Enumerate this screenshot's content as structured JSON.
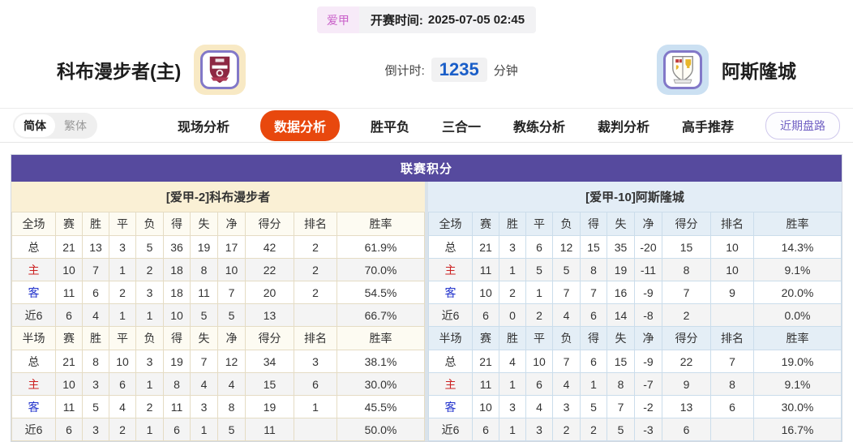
{
  "header": {
    "league": "爱甲",
    "kickoff_label": "开赛时间:",
    "kickoff_time": "2025-07-05 02:45",
    "home_team": "科布漫步者(主)",
    "away_team": "阿斯隆城",
    "countdown_label": "倒计时:",
    "countdown_value": "1235",
    "countdown_unit": "分钟"
  },
  "nav": {
    "lang": [
      "简体",
      "繁体"
    ],
    "tabs": [
      "现场分析",
      "数据分析",
      "胜平负",
      "三合一",
      "教练分析",
      "裁判分析",
      "高手推荐"
    ],
    "active_tab": "数据分析",
    "recent_button": "近期盘路"
  },
  "standings": {
    "title": "联赛积分",
    "home": {
      "band": "[爱甲-2]科布漫步者",
      "sections": [
        {
          "header": [
            "全场",
            "赛",
            "胜",
            "平",
            "负",
            "得",
            "失",
            "净",
            "得分",
            "排名",
            "胜率"
          ],
          "rows": [
            [
              "总",
              "21",
              "13",
              "3",
              "5",
              "36",
              "19",
              "17",
              "42",
              "2",
              "61.9%"
            ],
            [
              "主",
              "10",
              "7",
              "1",
              "2",
              "18",
              "8",
              "10",
              "22",
              "2",
              "70.0%"
            ],
            [
              "客",
              "11",
              "6",
              "2",
              "3",
              "18",
              "11",
              "7",
              "20",
              "2",
              "54.5%"
            ],
            [
              "近6",
              "6",
              "4",
              "1",
              "1",
              "10",
              "5",
              "5",
              "13",
              "",
              "66.7%"
            ]
          ]
        },
        {
          "header": [
            "半场",
            "赛",
            "胜",
            "平",
            "负",
            "得",
            "失",
            "净",
            "得分",
            "排名",
            "胜率"
          ],
          "rows": [
            [
              "总",
              "21",
              "8",
              "10",
              "3",
              "19",
              "7",
              "12",
              "34",
              "3",
              "38.1%"
            ],
            [
              "主",
              "10",
              "3",
              "6",
              "1",
              "8",
              "4",
              "4",
              "15",
              "6",
              "30.0%"
            ],
            [
              "客",
              "11",
              "5",
              "4",
              "2",
              "11",
              "3",
              "8",
              "19",
              "1",
              "45.5%"
            ],
            [
              "近6",
              "6",
              "3",
              "2",
              "1",
              "6",
              "1",
              "5",
              "11",
              "",
              "50.0%"
            ]
          ]
        }
      ]
    },
    "away": {
      "band": "[爱甲-10]阿斯隆城",
      "sections": [
        {
          "header": [
            "全场",
            "赛",
            "胜",
            "平",
            "负",
            "得",
            "失",
            "净",
            "得分",
            "排名",
            "胜率"
          ],
          "rows": [
            [
              "总",
              "21",
              "3",
              "6",
              "12",
              "15",
              "35",
              "-20",
              "15",
              "10",
              "14.3%"
            ],
            [
              "主",
              "11",
              "1",
              "5",
              "5",
              "8",
              "19",
              "-11",
              "8",
              "10",
              "9.1%"
            ],
            [
              "客",
              "10",
              "2",
              "1",
              "7",
              "7",
              "16",
              "-9",
              "7",
              "9",
              "20.0%"
            ],
            [
              "近6",
              "6",
              "0",
              "2",
              "4",
              "6",
              "14",
              "-8",
              "2",
              "",
              "0.0%"
            ]
          ]
        },
        {
          "header": [
            "半场",
            "赛",
            "胜",
            "平",
            "负",
            "得",
            "失",
            "净",
            "得分",
            "排名",
            "胜率"
          ],
          "rows": [
            [
              "总",
              "21",
              "4",
              "10",
              "7",
              "6",
              "15",
              "-9",
              "22",
              "7",
              "19.0%"
            ],
            [
              "主",
              "11",
              "1",
              "6",
              "4",
              "1",
              "8",
              "-7",
              "9",
              "8",
              "9.1%"
            ],
            [
              "客",
              "10",
              "3",
              "4",
              "3",
              "5",
              "7",
              "-2",
              "13",
              "6",
              "30.0%"
            ],
            [
              "近6",
              "6",
              "1",
              "3",
              "2",
              "2",
              "5",
              "-3",
              "6",
              "",
              "16.7%"
            ]
          ]
        }
      ]
    }
  },
  "colors": {
    "title_bar_purple": "#564a9e",
    "active_tab_orange": "#e8480e",
    "home_band_cream": "#faf0d5",
    "away_band_blue": "#e3edf6",
    "countdown_blue": "#1a5ec8",
    "league_badge_pink": "#c95fc9",
    "home_label_red": "#cc2222",
    "away_label_blue": "#2233cc"
  }
}
